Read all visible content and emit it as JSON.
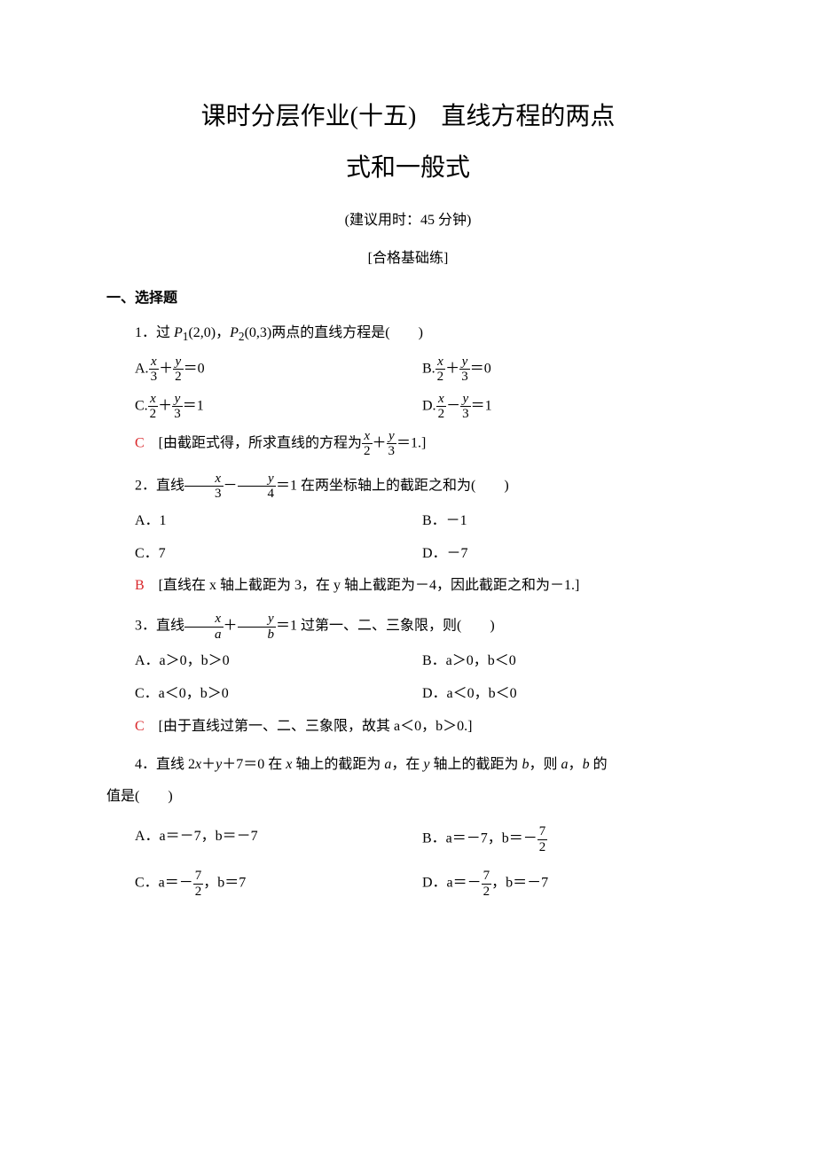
{
  "colors": {
    "text": "#000000",
    "answer": "#d9262a",
    "background": "#ffffff"
  },
  "fonts": {
    "body_family": "SimSun, 宋体, serif",
    "math_family": "Times New Roman, serif",
    "body_size": 16,
    "title_size": 28
  },
  "title_line1": "课时分层作业(十五)　直线方程的两点",
  "title_line2": "式和一般式",
  "time_suggestion": "(建议用时：45 分钟)",
  "section_label": "[合格基础练]",
  "section_header": "一、选择题",
  "q1": {
    "prefix": "1．过 ",
    "p1_label": "P",
    "p1_sub": "1",
    "p1_coords": "(2,0)",
    "comma": "，",
    "p2_label": "P",
    "p2_sub": "2",
    "p2_coords": "(0,3)",
    "suffix": "两点的直线方程是(　　)",
    "optA_prefix": "A.",
    "optA_frac1_num": "x",
    "optA_frac1_den": "3",
    "optA_plus": "＋",
    "optA_frac2_num": "y",
    "optA_frac2_den": "2",
    "optA_eq": "＝0",
    "optB_prefix": "B.",
    "optB_frac1_num": "x",
    "optB_frac1_den": "2",
    "optB_plus": "＋",
    "optB_frac2_num": "y",
    "optB_frac2_den": "3",
    "optB_eq": "＝0",
    "optC_prefix": "C.",
    "optC_frac1_num": "x",
    "optC_frac1_den": "2",
    "optC_plus": "＋",
    "optC_frac2_num": "y",
    "optC_frac2_den": "3",
    "optC_eq": "＝1",
    "optD_prefix": "D.",
    "optD_frac1_num": "x",
    "optD_frac1_den": "2",
    "optD_minus": "－",
    "optD_frac2_num": "y",
    "optD_frac2_den": "3",
    "optD_eq": "＝1",
    "answer_letter": "C",
    "answer_text1": "　[由截距式得，所求直线的方程为",
    "answer_frac1_num": "x",
    "answer_frac1_den": "2",
    "answer_plus": "＋",
    "answer_frac2_num": "y",
    "answer_frac2_den": "3",
    "answer_text2": "＝1.]"
  },
  "q2": {
    "prefix": "2．直线",
    "frac1_num": "x",
    "frac1_den": "3",
    "minus": "－",
    "frac2_num": "y",
    "frac2_den": "4",
    "suffix": "＝1 在两坐标轴上的截距之和为(　　)",
    "optA": "A．1",
    "optB": "B．－1",
    "optC": "C．7",
    "optD": "D．－7",
    "answer_letter": "B",
    "answer_text": "　[直线在 x 轴上截距为 3，在 y 轴上截距为－4，因此截距之和为－1.]"
  },
  "q3": {
    "prefix": "3．直线",
    "frac1_num": "x",
    "frac1_den": "a",
    "plus": "＋",
    "frac2_num": "y",
    "frac2_den": "b",
    "suffix": "＝1 过第一、二、三象限，则(　　)",
    "optA": "A．a＞0，b＞0",
    "optB": "B．a＞0，b＜0",
    "optC": "C．a＜0，b＞0",
    "optD": "D．a＜0，b＜0",
    "answer_letter": "C",
    "answer_text": "　[由于直线过第一、二、三象限，故其 a＜0，b＞0.]"
  },
  "q4": {
    "line1_prefix": "4．直线 2",
    "line1_x": "x",
    "line1_plus": "＋",
    "line1_y": "y",
    "line1_mid": "＋7＝0 在 ",
    "line1_x2": "x",
    "line1_mid2": " 轴上的截距为 ",
    "line1_a": "a",
    "line1_mid3": "，在 ",
    "line1_y2": "y",
    "line1_mid4": " 轴上的截距为 ",
    "line1_b": "b",
    "line1_mid5": "，则 ",
    "line1_a2": "a",
    "line1_mid6": "，",
    "line1_b2": "b",
    "line1_suffix": " 的",
    "line2": "值是(　　)",
    "optA": "A．a＝－7，b＝－7",
    "optB_prefix": "B．a＝－7，b＝－",
    "optB_frac_num": "7",
    "optB_frac_den": "2",
    "optC_prefix": "C．a＝－",
    "optC_frac_num": "7",
    "optC_frac_den": "2",
    "optC_suffix": "，b＝7",
    "optD_prefix": "D．a＝－",
    "optD_frac_num": "7",
    "optD_frac_den": "2",
    "optD_suffix": "，b＝－7"
  }
}
